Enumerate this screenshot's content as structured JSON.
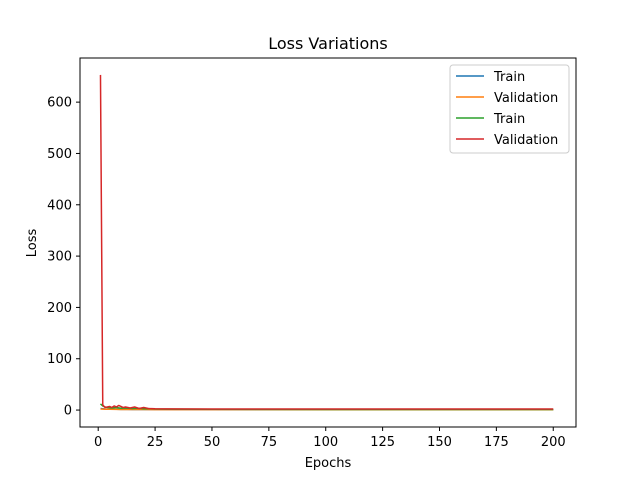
{
  "chart_data": {
    "type": "line",
    "title": "Loss Variations",
    "xlabel": "Epochs",
    "ylabel": "Loss",
    "xlim": [
      -8,
      210
    ],
    "ylim": [
      -33,
      686
    ],
    "x_ticks": [
      0,
      25,
      50,
      75,
      100,
      125,
      150,
      175,
      200
    ],
    "y_ticks": [
      0,
      100,
      200,
      300,
      400,
      500,
      600
    ],
    "grid": false,
    "legend_position": "top-right",
    "series": [
      {
        "name": "Train",
        "color": "#1f77b4",
        "x": [
          1,
          2,
          3,
          5,
          8,
          10,
          15,
          20,
          25,
          50,
          100,
          150,
          200
        ],
        "y": [
          3,
          2.5,
          2,
          1.8,
          1.5,
          1.4,
          1.2,
          1.1,
          1,
          0.9,
          0.8,
          0.7,
          0.6
        ]
      },
      {
        "name": "Validation",
        "color": "#ff7f0e",
        "x": [
          1,
          2,
          3,
          5,
          8,
          10,
          15,
          20,
          25,
          50,
          100,
          150,
          200
        ],
        "y": [
          2,
          1.8,
          1.6,
          1.5,
          1.3,
          1.2,
          1.1,
          1,
          0.9,
          0.8,
          0.7,
          0.6,
          0.5
        ]
      },
      {
        "name": "Train",
        "color": "#2ca02c",
        "x": [
          1,
          2,
          3,
          4,
          6,
          8,
          10,
          12,
          15,
          18,
          20,
          22,
          25,
          30,
          50,
          100,
          150,
          200
        ],
        "y": [
          12,
          8,
          6,
          5,
          4,
          5,
          3.5,
          4,
          3,
          3.5,
          2.5,
          2.8,
          2,
          1.8,
          1.5,
          1.2,
          1.1,
          1
        ]
      },
      {
        "name": "Validation",
        "color": "#d62728",
        "x": [
          1,
          2,
          3,
          4,
          5,
          6,
          7,
          8,
          9,
          10,
          11,
          12,
          14,
          16,
          18,
          20,
          22,
          25,
          30,
          50,
          100,
          150,
          200
        ],
        "y": [
          653,
          10,
          5,
          6,
          7,
          5,
          8,
          6,
          9,
          7,
          5,
          6,
          4,
          6,
          3,
          5,
          3,
          2.5,
          2.2,
          2,
          2,
          2,
          2
        ]
      }
    ]
  }
}
